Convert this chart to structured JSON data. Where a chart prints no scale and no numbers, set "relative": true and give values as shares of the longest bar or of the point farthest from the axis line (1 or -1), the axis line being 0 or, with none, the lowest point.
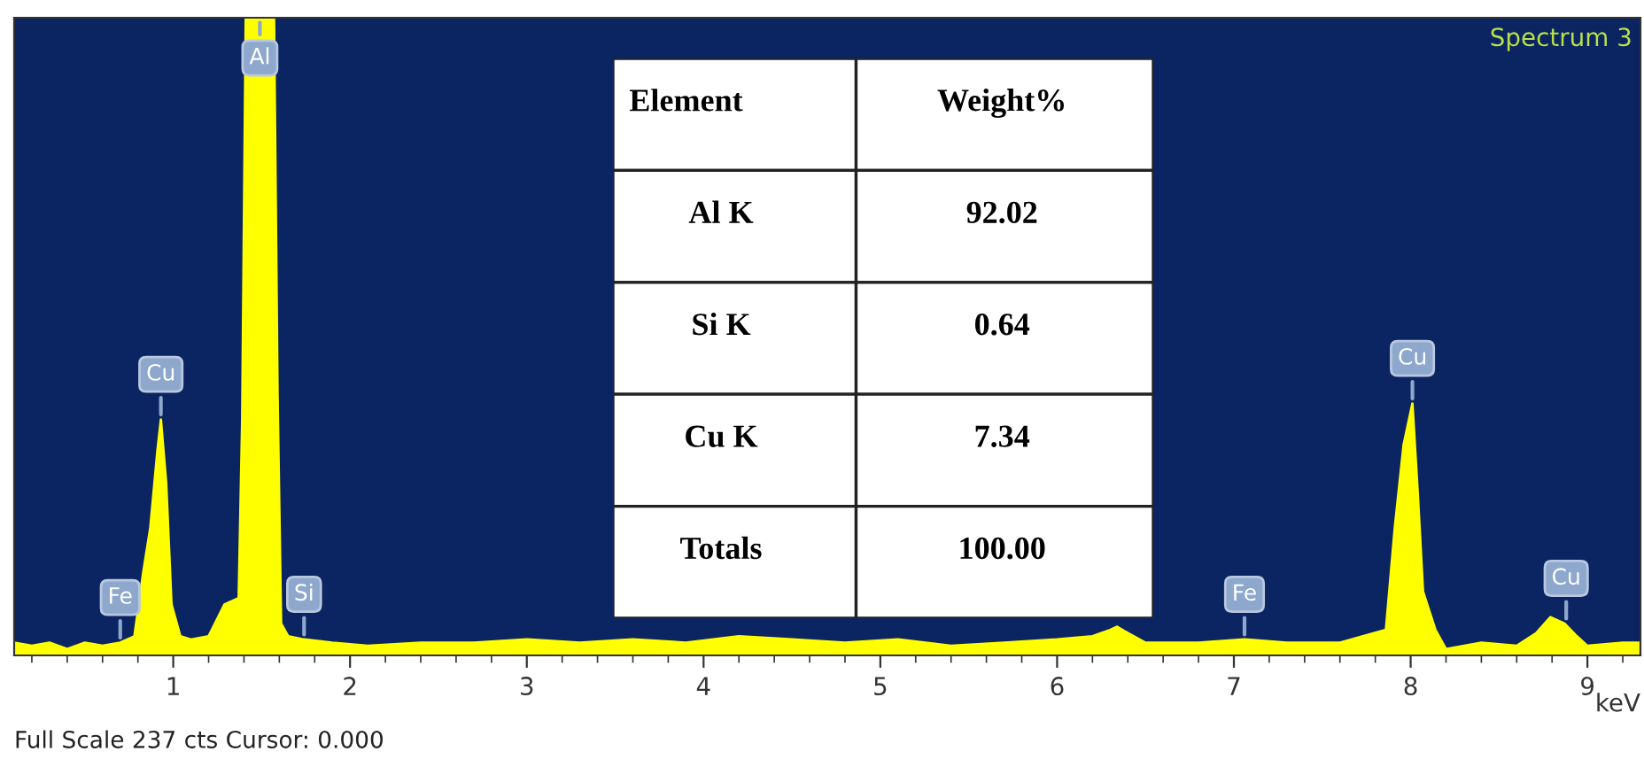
{
  "chart_data": {
    "type": "area",
    "title": "Spectrum 3",
    "xlabel": "keV",
    "relative": true,
    "xlim": [
      0.1,
      9.3
    ],
    "xticks": [
      1,
      2,
      3,
      4,
      5,
      6,
      7,
      8,
      9
    ],
    "series": [
      {
        "color": "#ffff00",
        "x": [
          0.1,
          0.2,
          0.3,
          0.4,
          0.5,
          0.6,
          0.7,
          0.78,
          0.83,
          0.87,
          0.91,
          0.93,
          0.96,
          0.99,
          1.04,
          1.1,
          1.2,
          1.29,
          1.37,
          1.39,
          1.41,
          1.57,
          1.59,
          1.61,
          1.65,
          1.74,
          1.9,
          2.1,
          2.4,
          2.7,
          3.0,
          3.3,
          3.6,
          3.9,
          4.2,
          4.5,
          4.8,
          5.1,
          5.4,
          5.7,
          6.0,
          6.2,
          6.3,
          6.34,
          6.4,
          6.5,
          6.8,
          7.06,
          7.3,
          7.6,
          7.86,
          7.91,
          7.96,
          8.01,
          8.04,
          8.07,
          8.14,
          8.2,
          8.4,
          8.6,
          8.71,
          8.79,
          8.87,
          8.94,
          9.0,
          9.2,
          9.3
        ],
        "values": [
          0.02,
          0.015,
          0.02,
          0.01,
          0.02,
          0.015,
          0.02,
          0.03,
          0.13,
          0.2,
          0.32,
          0.37,
          0.27,
          0.08,
          0.03,
          0.025,
          0.03,
          0.08,
          0.09,
          0.37,
          1.0,
          1.0,
          0.41,
          0.05,
          0.03,
          0.025,
          0.02,
          0.015,
          0.02,
          0.02,
          0.025,
          0.02,
          0.025,
          0.02,
          0.03,
          0.025,
          0.02,
          0.025,
          0.015,
          0.02,
          0.025,
          0.03,
          0.04,
          0.045,
          0.035,
          0.02,
          0.02,
          0.025,
          0.02,
          0.02,
          0.04,
          0.2,
          0.33,
          0.395,
          0.255,
          0.1,
          0.04,
          0.01,
          0.02,
          0.015,
          0.035,
          0.06,
          0.05,
          0.03,
          0.015,
          0.02,
          0.02
        ]
      }
    ],
    "annotations": [
      {
        "text": "Fe",
        "x": 0.7,
        "y": 0.02
      },
      {
        "text": "Cu",
        "x": 0.93,
        "y": 0.37
      },
      {
        "text": "Al",
        "x": 1.49,
        "y": 1.0
      },
      {
        "text": "Si",
        "x": 1.74,
        "y": 0.025
      },
      {
        "text": "Fe",
        "x": 7.06,
        "y": 0.025
      },
      {
        "text": "Cu",
        "x": 8.01,
        "y": 0.395
      },
      {
        "text": "Cu",
        "x": 8.88,
        "y": 0.05
      },
      "Element",
      "Weight%",
      "Al K",
      "92.02",
      "Si K",
      "0.64",
      "Cu K",
      "7.34",
      "Totals",
      "100.00",
      "Full Scale 237 cts Cursor: 0.000"
    ]
  }
}
